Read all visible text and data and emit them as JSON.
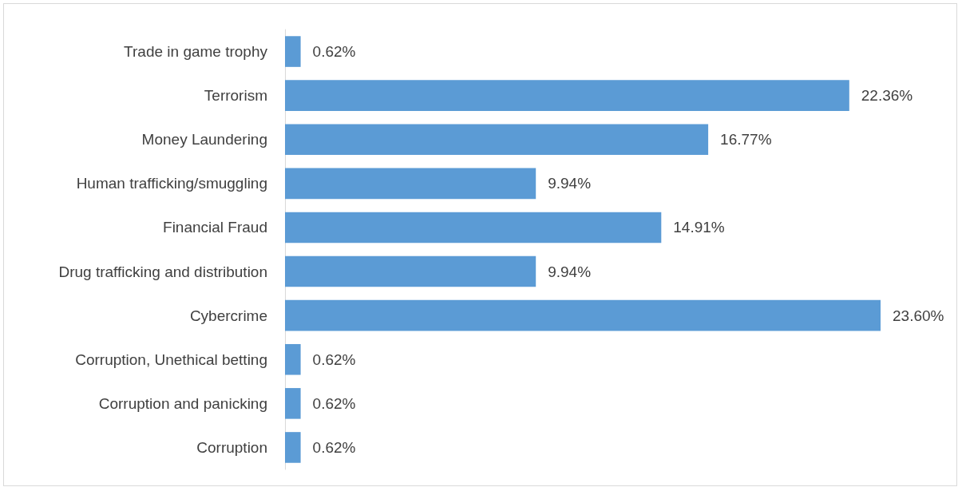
{
  "chart_data": {
    "type": "bar",
    "orientation": "horizontal",
    "categories": [
      "Trade in game trophy",
      "Terrorism",
      "Money Laundering",
      "Human trafficking/smuggling",
      "Financial Fraud",
      "Drug trafficking and distribution",
      "Cybercrime",
      "Corruption, Unethical betting",
      "Corruption and panicking",
      "Corruption"
    ],
    "values": [
      0.62,
      22.36,
      16.77,
      9.94,
      14.91,
      9.94,
      23.6,
      0.62,
      0.62,
      0.62
    ],
    "value_labels": [
      "0.62%",
      "22.36%",
      "16.77%",
      "9.94%",
      "14.91%",
      "9.94%",
      "23.60%",
      "0.62%",
      "0.62%",
      "0.62%"
    ],
    "color": "#5b9bd5",
    "tick_labels": "y"
  }
}
